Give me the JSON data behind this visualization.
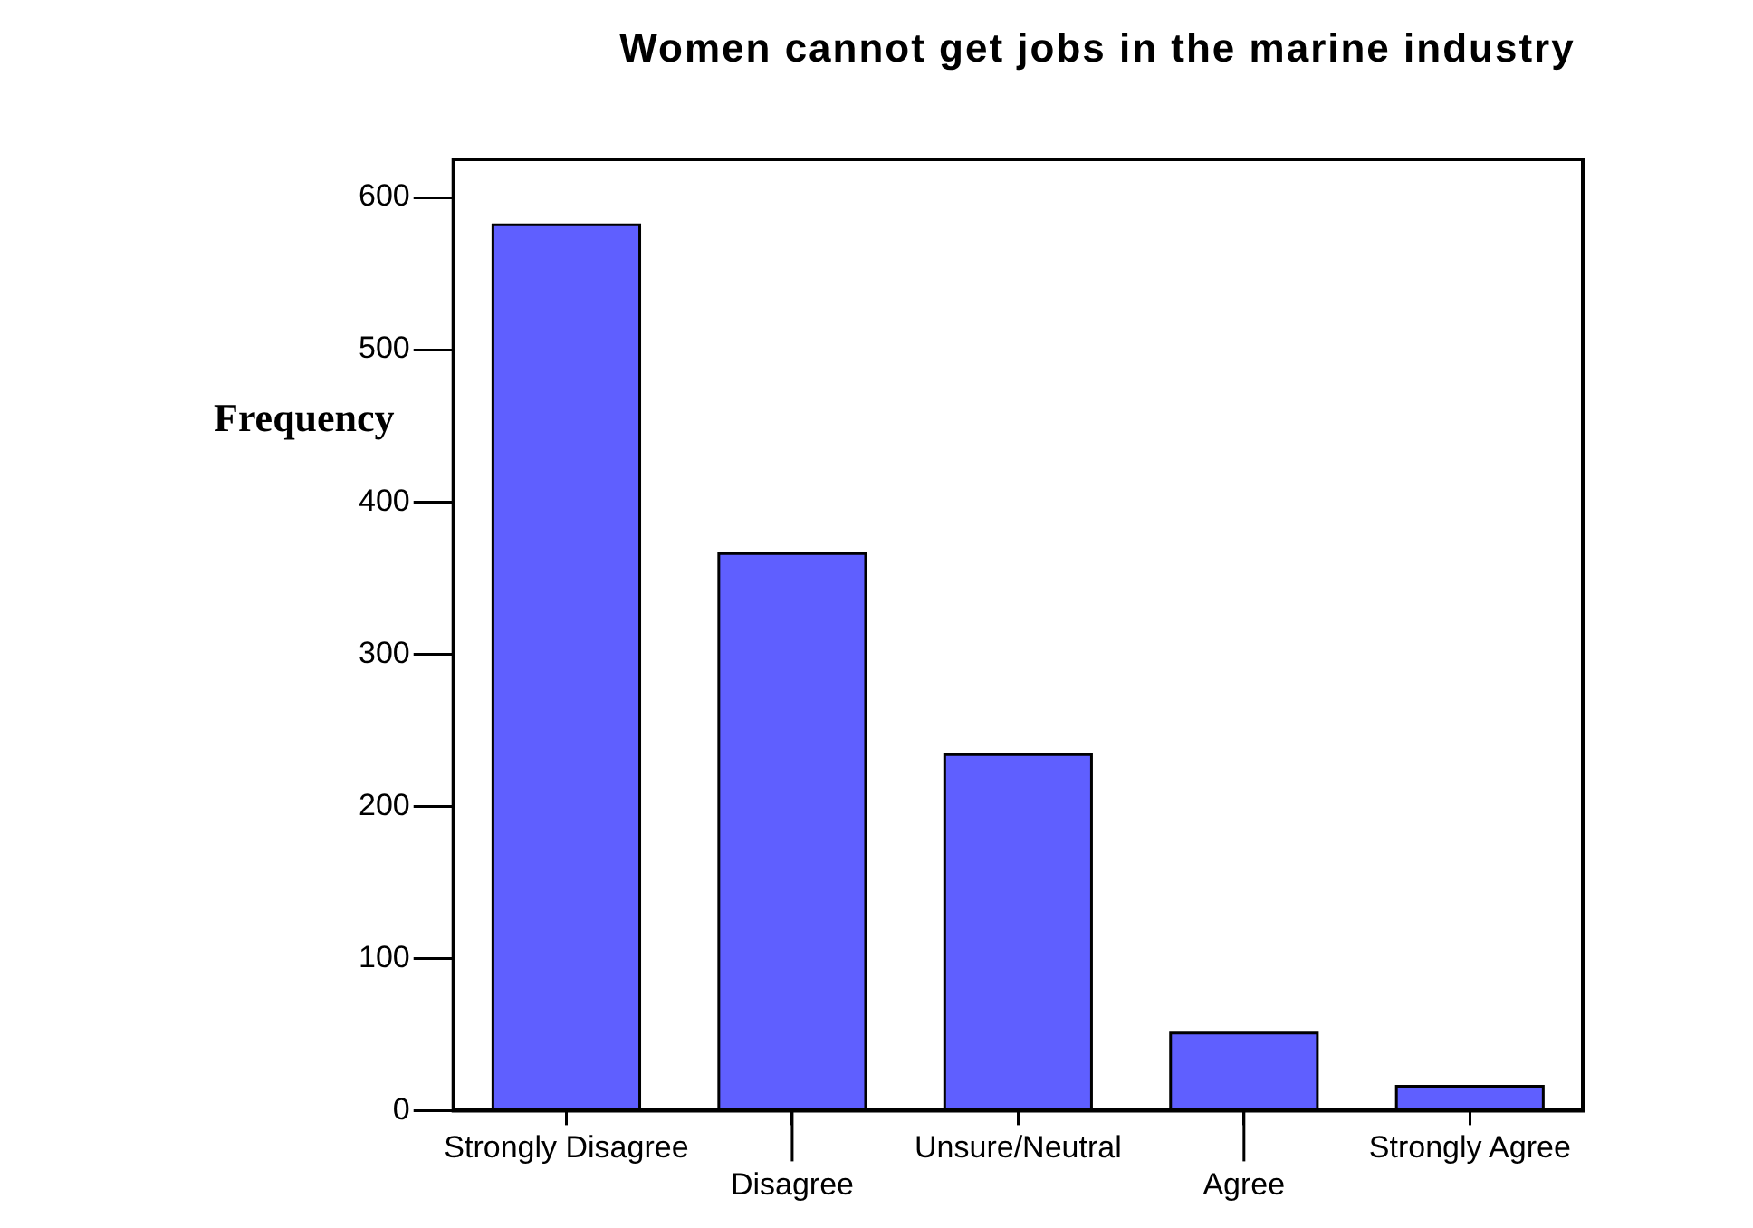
{
  "chart_data": {
    "type": "bar",
    "title": "Women cannot get jobs in the marine industry",
    "ylabel": "Frequency",
    "categories": [
      "Strongly Disagree",
      "Disagree",
      "Unsure/Neutral",
      "Agree",
      "Strongly Agree"
    ],
    "values": [
      582,
      366,
      234,
      51,
      16
    ],
    "color": "#5f5fff",
    "ylim": [
      0,
      625
    ],
    "yticks": [
      0,
      100,
      200,
      300,
      400,
      500,
      600
    ],
    "grid": false,
    "legend": false
  }
}
